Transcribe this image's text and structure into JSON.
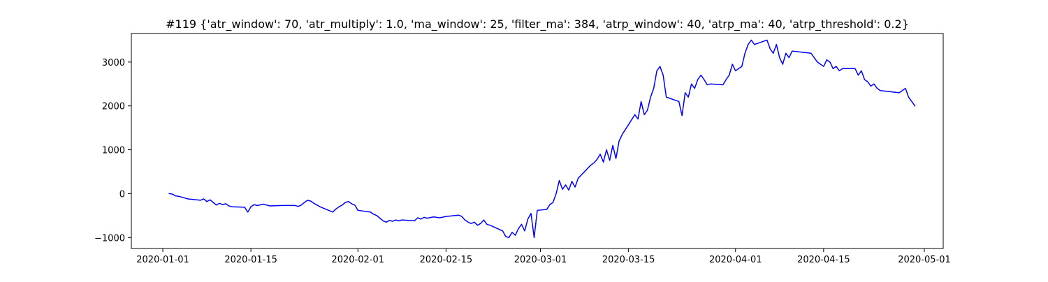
{
  "chart_data": {
    "type": "line",
    "title": "#119 {'atr_window': 70, 'atr_multiply': 1.0, 'ma_window': 25, 'filter_ma': 384, 'atrp_window': 40, 'atrp_ma': 40, 'atrp_threshold': 0.2}",
    "xlabel": "",
    "ylabel": "",
    "x_type": "date",
    "xlim": [
      "2019-12-27",
      "2020-05-04"
    ],
    "ylim": [
      -1250,
      3650
    ],
    "grid": false,
    "legend": "none",
    "x_ticks": [
      "2020-01-01",
      "2020-01-15",
      "2020-02-01",
      "2020-02-15",
      "2020-03-01",
      "2020-03-15",
      "2020-04-01",
      "2020-04-15",
      "2020-05-01"
    ],
    "y_ticks": [
      -1000,
      0,
      1000,
      2000,
      3000
    ],
    "y_tick_labels": [
      "−1000",
      "0",
      "1000",
      "2000",
      "3000"
    ],
    "series": [
      {
        "color": "#0000ff",
        "points": [
          [
            "2020-01-02",
            0
          ],
          [
            "2020-01-02T12:00",
            -10
          ],
          [
            "2020-01-03",
            -50
          ],
          [
            "2020-01-03T12:00",
            -60
          ],
          [
            "2020-01-04",
            -80
          ],
          [
            "2020-01-05",
            -120
          ],
          [
            "2020-01-07",
            -150
          ],
          [
            "2020-01-07T12:00",
            -120
          ],
          [
            "2020-01-08",
            -180
          ],
          [
            "2020-01-08T12:00",
            -140
          ],
          [
            "2020-01-09",
            -200
          ],
          [
            "2020-01-09T12:00",
            -260
          ],
          [
            "2020-01-10",
            -220
          ],
          [
            "2020-01-10T12:00",
            -250
          ],
          [
            "2020-01-11",
            -230
          ],
          [
            "2020-01-11T12:00",
            -280
          ],
          [
            "2020-01-12",
            -300
          ],
          [
            "2020-01-14",
            -310
          ],
          [
            "2020-01-14T12:00",
            -420
          ],
          [
            "2020-01-15",
            -300
          ],
          [
            "2020-01-15T12:00",
            -250
          ],
          [
            "2020-01-16",
            -270
          ],
          [
            "2020-01-17",
            -240
          ],
          [
            "2020-01-18",
            -280
          ],
          [
            "2020-01-20",
            -270
          ],
          [
            "2020-01-22",
            -270
          ],
          [
            "2020-01-22T12:00",
            -290
          ],
          [
            "2020-01-23",
            -260
          ],
          [
            "2020-01-23T12:00",
            -200
          ],
          [
            "2020-01-24",
            -150
          ],
          [
            "2020-01-24T12:00",
            -170
          ],
          [
            "2020-01-25",
            -220
          ],
          [
            "2020-01-26",
            -300
          ],
          [
            "2020-01-27",
            -360
          ],
          [
            "2020-01-28",
            -420
          ],
          [
            "2020-01-28T12:00",
            -350
          ],
          [
            "2020-01-29",
            -300
          ],
          [
            "2020-01-29T12:00",
            -260
          ],
          [
            "2020-01-30",
            -200
          ],
          [
            "2020-01-30T12:00",
            -180
          ],
          [
            "2020-01-31",
            -230
          ],
          [
            "2020-01-31T12:00",
            -260
          ],
          [
            "2020-02-01",
            -380
          ],
          [
            "2020-02-03",
            -420
          ],
          [
            "2020-02-03T12:00",
            -470
          ],
          [
            "2020-02-04",
            -500
          ],
          [
            "2020-02-04T12:00",
            -560
          ],
          [
            "2020-02-05",
            -620
          ],
          [
            "2020-02-05T12:00",
            -650
          ],
          [
            "2020-02-06",
            -610
          ],
          [
            "2020-02-06T12:00",
            -630
          ],
          [
            "2020-02-07",
            -600
          ],
          [
            "2020-02-07T12:00",
            -620
          ],
          [
            "2020-02-08",
            -600
          ],
          [
            "2020-02-10",
            -620
          ],
          [
            "2020-02-10T12:00",
            -550
          ],
          [
            "2020-02-11",
            -580
          ],
          [
            "2020-02-11T12:00",
            -540
          ],
          [
            "2020-02-12",
            -560
          ],
          [
            "2020-02-13",
            -530
          ],
          [
            "2020-02-14",
            -550
          ],
          [
            "2020-02-15",
            -520
          ],
          [
            "2020-02-17",
            -490
          ],
          [
            "2020-02-17T12:00",
            -520
          ],
          [
            "2020-02-18",
            -600
          ],
          [
            "2020-02-18T12:00",
            -650
          ],
          [
            "2020-02-19",
            -680
          ],
          [
            "2020-02-19T12:00",
            -650
          ],
          [
            "2020-02-20",
            -720
          ],
          [
            "2020-02-20T12:00",
            -680
          ],
          [
            "2020-02-21",
            -600
          ],
          [
            "2020-02-21T12:00",
            -700
          ],
          [
            "2020-02-22",
            -720
          ],
          [
            "2020-02-24",
            -850
          ],
          [
            "2020-02-24T12:00",
            -980
          ],
          [
            "2020-02-25",
            -1000
          ],
          [
            "2020-02-25T12:00",
            -880
          ],
          [
            "2020-02-26",
            -950
          ],
          [
            "2020-02-26T12:00",
            -800
          ],
          [
            "2020-02-27",
            -700
          ],
          [
            "2020-02-27T12:00",
            -850
          ],
          [
            "2020-02-28",
            -580
          ],
          [
            "2020-02-28T12:00",
            -450
          ],
          [
            "2020-02-29",
            -1000
          ],
          [
            "2020-02-29T12:00",
            -380
          ],
          [
            "2020-03-02",
            -360
          ],
          [
            "2020-03-02T12:00",
            -250
          ],
          [
            "2020-03-03",
            -200
          ],
          [
            "2020-03-03T12:00",
            0
          ],
          [
            "2020-03-04",
            300
          ],
          [
            "2020-03-04T12:00",
            100
          ],
          [
            "2020-03-05",
            200
          ],
          [
            "2020-03-05T12:00",
            80
          ],
          [
            "2020-03-06",
            280
          ],
          [
            "2020-03-06T12:00",
            150
          ],
          [
            "2020-03-07",
            350
          ],
          [
            "2020-03-09",
            650
          ],
          [
            "2020-03-09T12:00",
            700
          ],
          [
            "2020-03-10",
            780
          ],
          [
            "2020-03-10T12:00",
            900
          ],
          [
            "2020-03-11",
            720
          ],
          [
            "2020-03-11T12:00",
            1000
          ],
          [
            "2020-03-12",
            760
          ],
          [
            "2020-03-12T12:00",
            1100
          ],
          [
            "2020-03-13",
            800
          ],
          [
            "2020-03-13T12:00",
            1200
          ],
          [
            "2020-03-14",
            1350
          ],
          [
            "2020-03-16",
            1800
          ],
          [
            "2020-03-16T12:00",
            1700
          ],
          [
            "2020-03-17",
            2100
          ],
          [
            "2020-03-17T12:00",
            1800
          ],
          [
            "2020-03-18",
            1900
          ],
          [
            "2020-03-18T12:00",
            2200
          ],
          [
            "2020-03-19",
            2400
          ],
          [
            "2020-03-19T12:00",
            2800
          ],
          [
            "2020-03-20",
            2900
          ],
          [
            "2020-03-20T12:00",
            2700
          ],
          [
            "2020-03-21",
            2200
          ],
          [
            "2020-03-23",
            2100
          ],
          [
            "2020-03-23T12:00",
            1780
          ],
          [
            "2020-03-24",
            2300
          ],
          [
            "2020-03-24T12:00",
            2200
          ],
          [
            "2020-03-25",
            2500
          ],
          [
            "2020-03-25T12:00",
            2400
          ],
          [
            "2020-03-26",
            2600
          ],
          [
            "2020-03-26T12:00",
            2700
          ],
          [
            "2020-03-27",
            2600
          ],
          [
            "2020-03-27T12:00",
            2480
          ],
          [
            "2020-03-28",
            2500
          ],
          [
            "2020-03-30",
            2480
          ],
          [
            "2020-03-30T12:00",
            2600
          ],
          [
            "2020-03-31",
            2700
          ],
          [
            "2020-03-31T12:00",
            2950
          ],
          [
            "2020-04-01",
            2800
          ],
          [
            "2020-04-01T12:00",
            2850
          ],
          [
            "2020-04-02",
            2900
          ],
          [
            "2020-04-02T12:00",
            3200
          ],
          [
            "2020-04-03",
            3400
          ],
          [
            "2020-04-03T12:00",
            3500
          ],
          [
            "2020-04-04",
            3400
          ],
          [
            "2020-04-06",
            3500
          ],
          [
            "2020-04-06T12:00",
            3300
          ],
          [
            "2020-04-07",
            3200
          ],
          [
            "2020-04-07T12:00",
            3400
          ],
          [
            "2020-04-08",
            3100
          ],
          [
            "2020-04-08T12:00",
            2950
          ],
          [
            "2020-04-09",
            3200
          ],
          [
            "2020-04-09T12:00",
            3100
          ],
          [
            "2020-04-10",
            3250
          ],
          [
            "2020-04-13",
            3200
          ],
          [
            "2020-04-13T12:00",
            3100
          ],
          [
            "2020-04-14",
            3000
          ],
          [
            "2020-04-14T12:00",
            2950
          ],
          [
            "2020-04-15",
            2900
          ],
          [
            "2020-04-15T12:00",
            3050
          ],
          [
            "2020-04-16",
            3000
          ],
          [
            "2020-04-16T12:00",
            2850
          ],
          [
            "2020-04-17",
            2900
          ],
          [
            "2020-04-17T12:00",
            2800
          ],
          [
            "2020-04-18",
            2850
          ],
          [
            "2020-04-20",
            2850
          ],
          [
            "2020-04-20T12:00",
            2700
          ],
          [
            "2020-04-21",
            2800
          ],
          [
            "2020-04-21T12:00",
            2600
          ],
          [
            "2020-04-22",
            2550
          ],
          [
            "2020-04-22T12:00",
            2450
          ],
          [
            "2020-04-23",
            2500
          ],
          [
            "2020-04-23T12:00",
            2400
          ],
          [
            "2020-04-24",
            2350
          ],
          [
            "2020-04-27",
            2300
          ],
          [
            "2020-04-27T12:00",
            2350
          ],
          [
            "2020-04-28",
            2400
          ],
          [
            "2020-04-28T12:00",
            2200
          ],
          [
            "2020-04-29",
            2100
          ],
          [
            "2020-04-29T12:00",
            2000
          ]
        ]
      }
    ]
  }
}
